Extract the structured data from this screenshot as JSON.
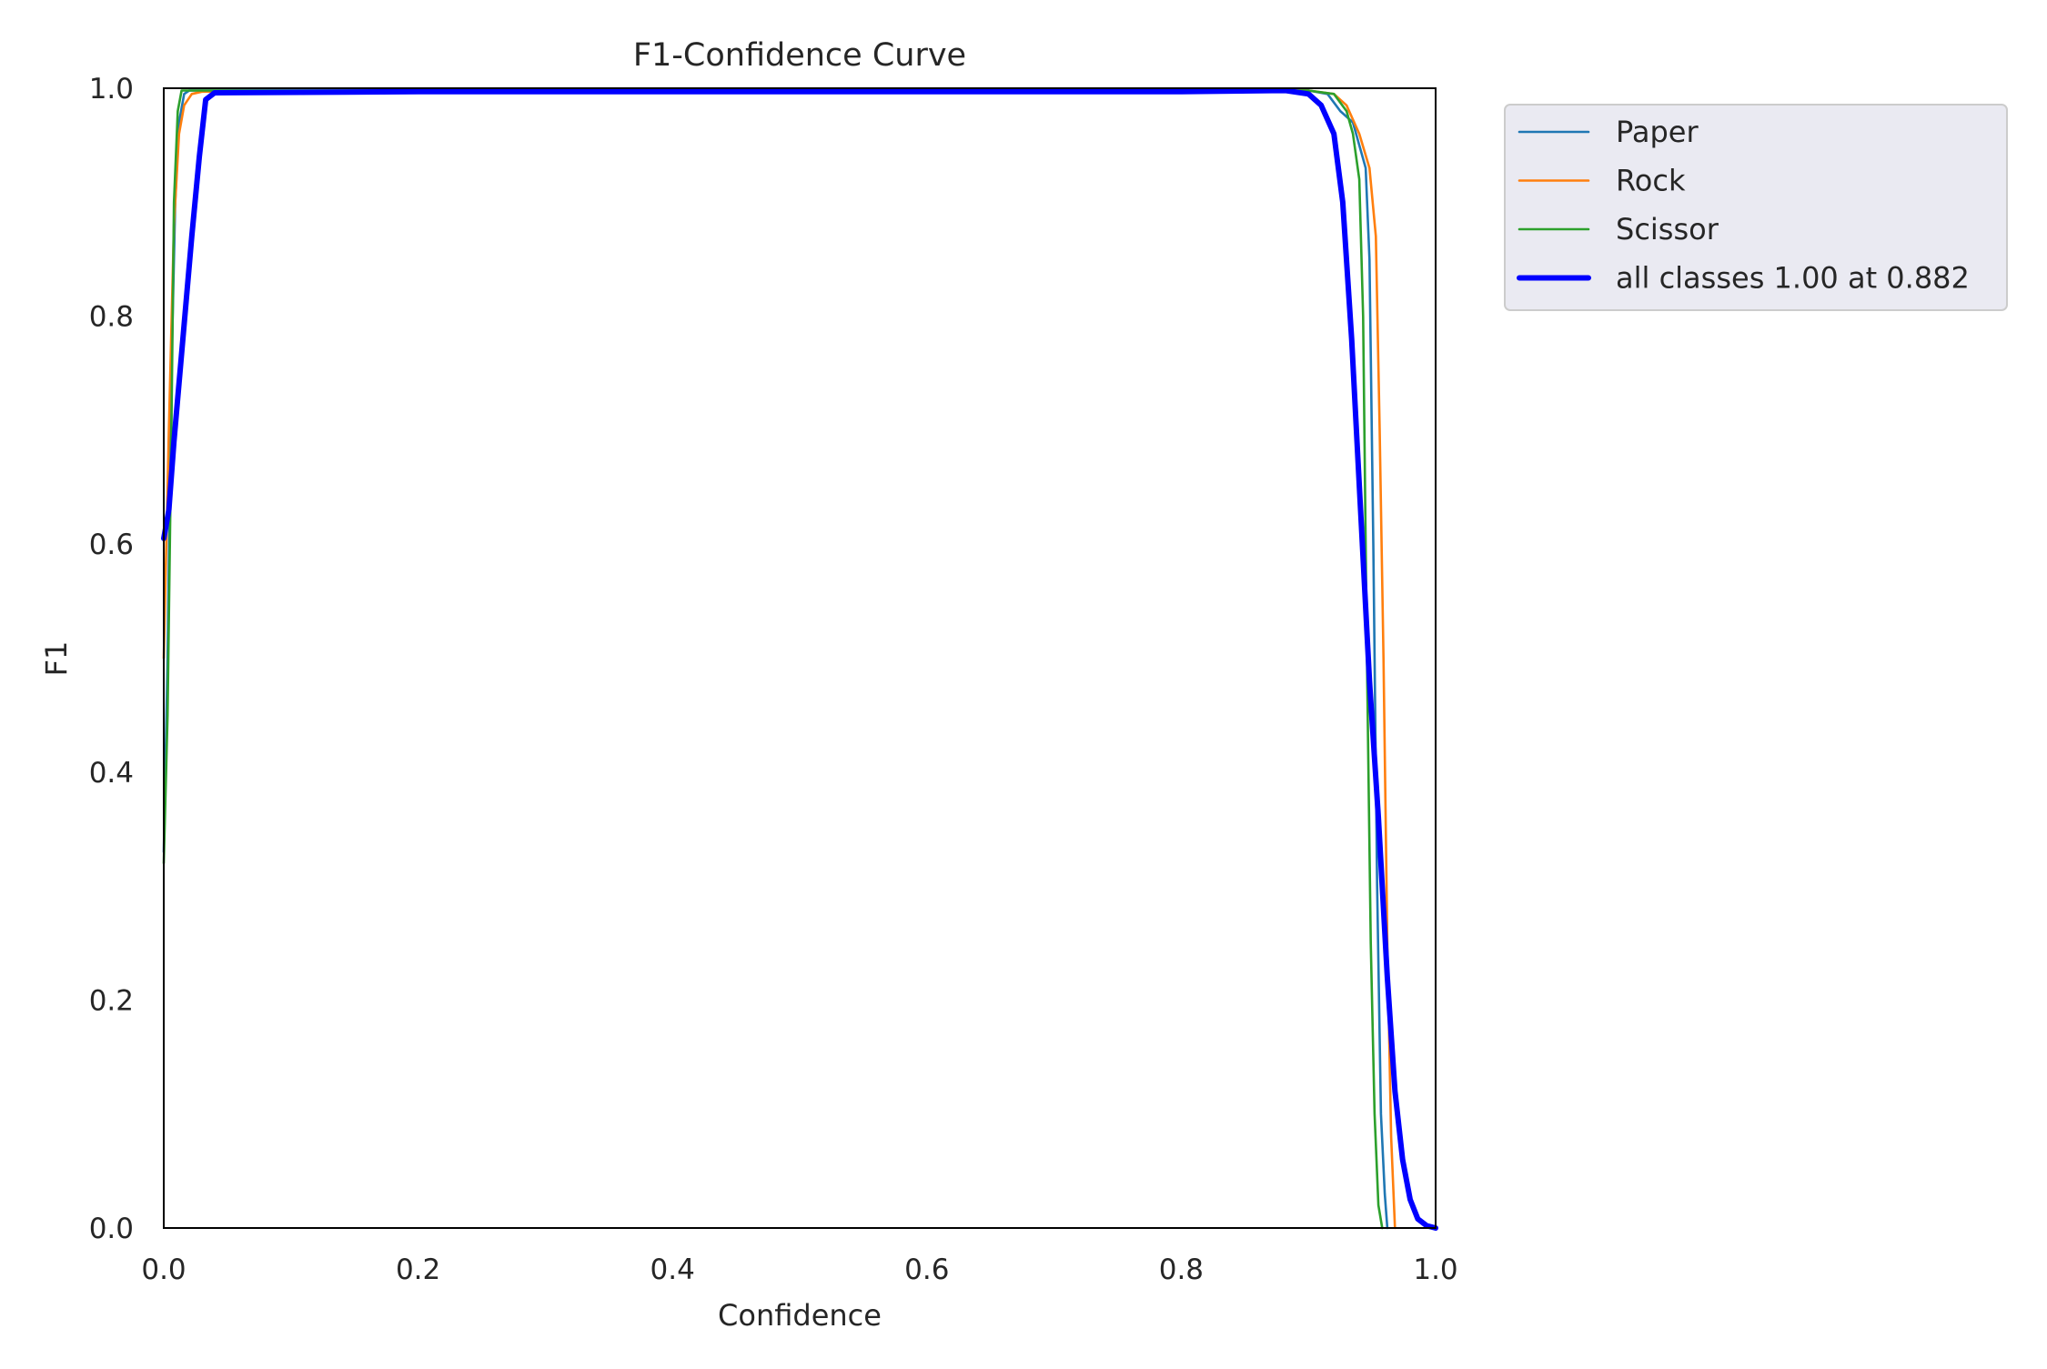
{
  "chart_data": {
    "type": "line",
    "title": "F1-Confidence Curve",
    "xlabel": "Confidence",
    "ylabel": "F1",
    "xlim": [
      0,
      1
    ],
    "ylim": [
      0,
      1
    ],
    "x_ticks": [
      "0.0",
      "0.2",
      "0.4",
      "0.6",
      "0.8",
      "1.0"
    ],
    "y_ticks": [
      "0.0",
      "0.2",
      "0.4",
      "0.6",
      "0.8",
      "1.0"
    ],
    "grid": false,
    "legend_position": "outside-top-right",
    "series": [
      {
        "name": "Paper",
        "color": "#1f77b4",
        "points": [
          [
            0.0,
            0.33
          ],
          [
            0.003,
            0.5
          ],
          [
            0.006,
            0.75
          ],
          [
            0.009,
            0.9
          ],
          [
            0.012,
            0.97
          ],
          [
            0.016,
            0.995
          ],
          [
            0.02,
            0.998
          ],
          [
            0.2,
            0.998
          ],
          [
            0.5,
            0.998
          ],
          [
            0.8,
            0.998
          ],
          [
            0.9,
            0.998
          ],
          [
            0.915,
            0.995
          ],
          [
            0.925,
            0.98
          ],
          [
            0.935,
            0.97
          ],
          [
            0.94,
            0.95
          ],
          [
            0.945,
            0.93
          ],
          [
            0.948,
            0.85
          ],
          [
            0.951,
            0.6
          ],
          [
            0.954,
            0.3
          ],
          [
            0.957,
            0.1
          ],
          [
            0.96,
            0.03
          ],
          [
            0.962,
            0.0
          ]
        ]
      },
      {
        "name": "Rock",
        "color": "#ff7f0e",
        "points": [
          [
            0.0,
            0.5
          ],
          [
            0.004,
            0.7
          ],
          [
            0.008,
            0.88
          ],
          [
            0.012,
            0.96
          ],
          [
            0.016,
            0.985
          ],
          [
            0.022,
            0.995
          ],
          [
            0.03,
            0.997
          ],
          [
            0.2,
            0.998
          ],
          [
            0.5,
            0.998
          ],
          [
            0.8,
            0.998
          ],
          [
            0.9,
            0.998
          ],
          [
            0.92,
            0.995
          ],
          [
            0.93,
            0.985
          ],
          [
            0.94,
            0.96
          ],
          [
            0.948,
            0.93
          ],
          [
            0.953,
            0.87
          ],
          [
            0.956,
            0.7
          ],
          [
            0.959,
            0.5
          ],
          [
            0.962,
            0.25
          ],
          [
            0.965,
            0.08
          ],
          [
            0.968,
            0.0
          ]
        ]
      },
      {
        "name": "Scissor",
        "color": "#2ca02c",
        "points": [
          [
            0.0,
            0.32
          ],
          [
            0.003,
            0.45
          ],
          [
            0.006,
            0.7
          ],
          [
            0.008,
            0.9
          ],
          [
            0.011,
            0.98
          ],
          [
            0.014,
            0.998
          ],
          [
            0.2,
            0.998
          ],
          [
            0.5,
            0.998
          ],
          [
            0.8,
            0.998
          ],
          [
            0.9,
            0.998
          ],
          [
            0.92,
            0.995
          ],
          [
            0.93,
            0.98
          ],
          [
            0.935,
            0.96
          ],
          [
            0.94,
            0.92
          ],
          [
            0.943,
            0.8
          ],
          [
            0.946,
            0.5
          ],
          [
            0.949,
            0.25
          ],
          [
            0.952,
            0.1
          ],
          [
            0.955,
            0.02
          ],
          [
            0.958,
            0.0
          ]
        ]
      },
      {
        "name": "all classes 1.00 at 0.882",
        "color": "#0000ff",
        "points": [
          [
            0.0,
            0.605
          ],
          [
            0.004,
            0.63
          ],
          [
            0.008,
            0.69
          ],
          [
            0.015,
            0.78
          ],
          [
            0.022,
            0.87
          ],
          [
            0.028,
            0.94
          ],
          [
            0.033,
            0.99
          ],
          [
            0.04,
            0.996
          ],
          [
            0.2,
            0.997
          ],
          [
            0.5,
            0.997
          ],
          [
            0.8,
            0.997
          ],
          [
            0.882,
            0.998
          ],
          [
            0.9,
            0.995
          ],
          [
            0.91,
            0.985
          ],
          [
            0.92,
            0.96
          ],
          [
            0.927,
            0.9
          ],
          [
            0.934,
            0.78
          ],
          [
            0.941,
            0.63
          ],
          [
            0.948,
            0.48
          ],
          [
            0.955,
            0.36
          ],
          [
            0.962,
            0.22
          ],
          [
            0.968,
            0.12
          ],
          [
            0.974,
            0.06
          ],
          [
            0.98,
            0.025
          ],
          [
            0.986,
            0.008
          ],
          [
            0.993,
            0.002
          ],
          [
            1.0,
            0.0
          ]
        ]
      }
    ]
  }
}
